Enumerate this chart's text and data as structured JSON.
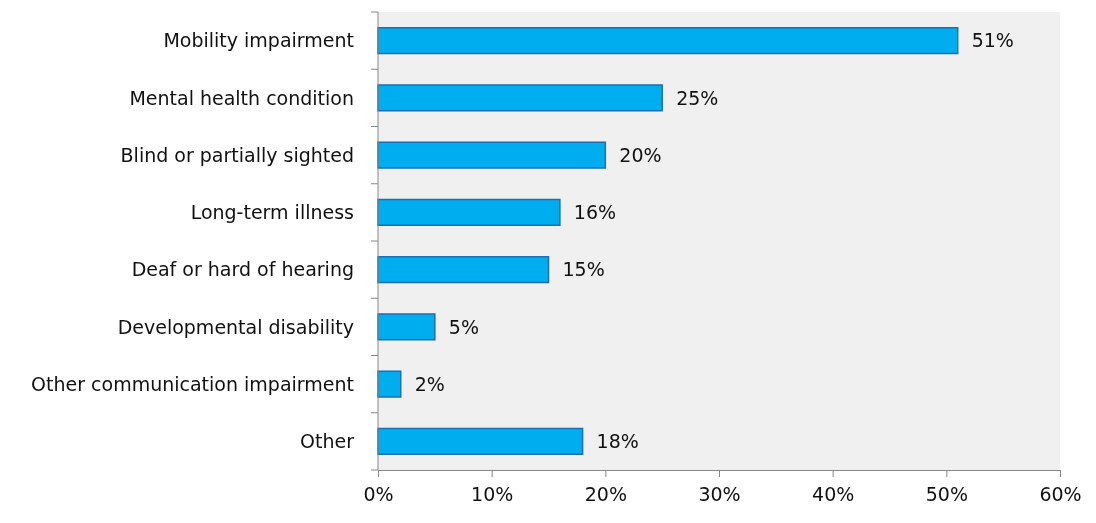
{
  "chart_data": {
    "type": "bar",
    "orientation": "horizontal",
    "categories": [
      "Mobility impairment",
      "Mental health condition",
      "Blind or partially sighted",
      "Long-term illness",
      "Deaf or hard of hearing",
      "Developmental disability",
      "Other communication impairment",
      "Other"
    ],
    "values": [
      51,
      25,
      20,
      16,
      15,
      5,
      2,
      18
    ],
    "color": "#00aeef",
    "xlim": [
      0,
      60
    ],
    "xticks": [
      {
        "value": 0,
        "label": "0%"
      },
      {
        "value": 10,
        "label": "10%"
      },
      {
        "value": 20,
        "label": "20%"
      },
      {
        "value": 30,
        "label": "30%"
      },
      {
        "value": 40,
        "label": "40%"
      },
      {
        "value": 50,
        "label": "50%"
      },
      {
        "value": 60,
        "label": "60%"
      }
    ],
    "value_labels": [
      "51%",
      "25%",
      "20%",
      "16%",
      "15%",
      "5%",
      "2%",
      "18%"
    ],
    "grid": false
  }
}
